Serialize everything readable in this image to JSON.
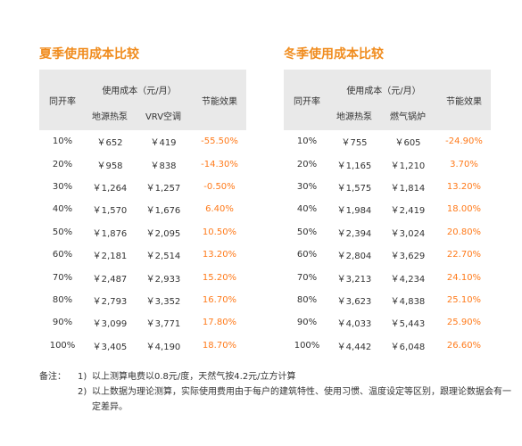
{
  "summer": {
    "title": "夏季使用成本比较",
    "header": {
      "rate": "同开率",
      "cost_group": "使用成本（元/月）",
      "col_a": "地源热泵",
      "col_b": "VRV空调",
      "saving": "节能效果"
    },
    "rows": [
      {
        "rate": "10%",
        "a": "￥652",
        "b": "￥419",
        "saving": "-55.50%"
      },
      {
        "rate": "20%",
        "a": "￥958",
        "b": "￥838",
        "saving": "-14.30%"
      },
      {
        "rate": "30%",
        "a": "￥1,264",
        "b": "￥1,257",
        "saving": "-0.50%"
      },
      {
        "rate": "40%",
        "a": "￥1,570",
        "b": "￥1,676",
        "saving": "6.40%"
      },
      {
        "rate": "50%",
        "a": "￥1,876",
        "b": "￥2,095",
        "saving": "10.50%"
      },
      {
        "rate": "60%",
        "a": "￥2,181",
        "b": "￥2,514",
        "saving": "13.20%"
      },
      {
        "rate": "70%",
        "a": "￥2,487",
        "b": "￥2,933",
        "saving": "15.20%"
      },
      {
        "rate": "80%",
        "a": "￥2,793",
        "b": "￥3,352",
        "saving": "16.70%"
      },
      {
        "rate": "90%",
        "a": "￥3,099",
        "b": "￥3,771",
        "saving": "17.80%"
      },
      {
        "rate": "100%",
        "a": "￥3,405",
        "b": "￥4,190",
        "saving": "18.70%"
      }
    ]
  },
  "winter": {
    "title": "冬季使用成本比较",
    "header": {
      "rate": "同开率",
      "cost_group": "使用成本（元/月）",
      "col_a": "地源热泵",
      "col_b": "燃气锅炉",
      "saving": "节能效果"
    },
    "rows": [
      {
        "rate": "10%",
        "a": "￥755",
        "b": "￥605",
        "saving": "-24.90%"
      },
      {
        "rate": "20%",
        "a": "￥1,165",
        "b": "￥1,210",
        "saving": "3.70%"
      },
      {
        "rate": "30%",
        "a": "￥1,575",
        "b": "￥1,814",
        "saving": "13.20%"
      },
      {
        "rate": "40%",
        "a": "￥1,984",
        "b": "￥2,419",
        "saving": "18.00%"
      },
      {
        "rate": "50%",
        "a": "￥2,394",
        "b": "￥3,024",
        "saving": "20.80%"
      },
      {
        "rate": "60%",
        "a": "￥2,804",
        "b": "￥3,629",
        "saving": "22.70%"
      },
      {
        "rate": "70%",
        "a": "￥3,213",
        "b": "￥4,234",
        "saving": "24.10%"
      },
      {
        "rate": "80%",
        "a": "￥3,623",
        "b": "￥4,838",
        "saving": "25.10%"
      },
      {
        "rate": "90%",
        "a": "￥4,033",
        "b": "￥5,443",
        "saving": "25.90%"
      },
      {
        "rate": "100%",
        "a": "￥4,442",
        "b": "￥6,048",
        "saving": "26.60%"
      }
    ]
  },
  "notes": {
    "label": "备注：",
    "items": [
      {
        "num": "1)",
        "text": "以上测算电费以0.8元/度，天然气按4.2元/立方计算"
      },
      {
        "num": "2)",
        "text": "以上数据为理论测算，实际使用费用由于每户的建筑特性、使用习惯、温度设定等区别，跟理论数据会有一定差异。"
      }
    ]
  },
  "colors": {
    "title_orange": "#f08c1e",
    "saving_orange": "#ff7a1a",
    "header_gray": "#e9e9e9"
  }
}
